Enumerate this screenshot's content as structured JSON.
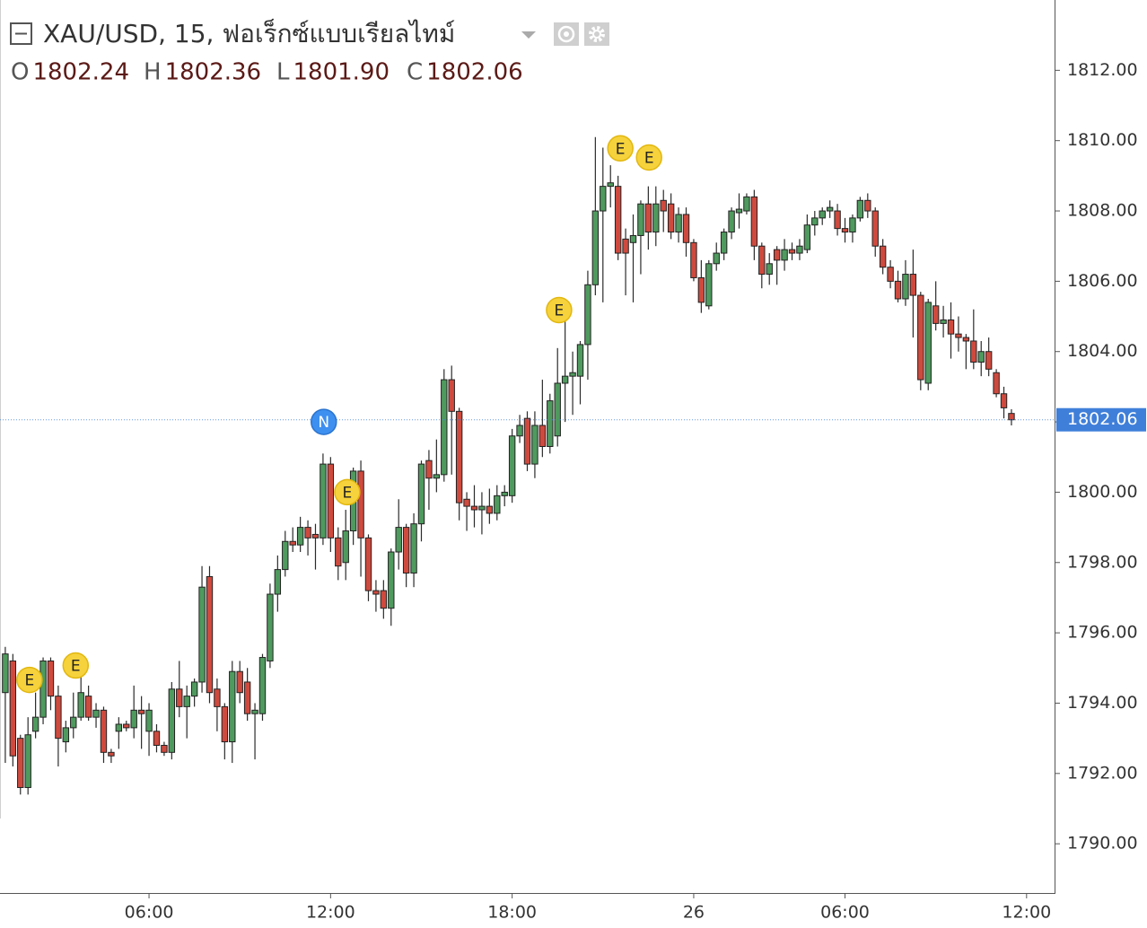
{
  "chart_data": {
    "type": "candlestick",
    "title": "XAU/USD, 15, ฟอเร็กซ์แบบเรียลไทม์",
    "ohlc_legend": [
      {
        "key": "O",
        "value": "1802.24"
      },
      {
        "key": "H",
        "value": "1802.36"
      },
      {
        "key": "L",
        "value": "1801.90"
      },
      {
        "key": "C",
        "value": "1802.06"
      }
    ],
    "up_color": "#4f9a5e",
    "down_color": "#cf4a3e",
    "open": [
      1794.3,
      1795.2,
      1793.0,
      1791.6,
      1793.2,
      1793.6,
      1795.2,
      1794.2,
      1792.9,
      1793.3,
      1793.6,
      1794.2,
      1793.6,
      1793.8,
      1792.6,
      1793.2,
      1793.4,
      1793.3,
      1793.8,
      1793.2,
      1793.2,
      1792.8,
      1792.6,
      1794.4,
      1793.9,
      1794.2,
      1794.6,
      1797.6,
      1794.4,
      1793.9,
      1792.9,
      1794.9,
      1794.6,
      1793.7,
      1793.7,
      1795.2,
      1797.1,
      1797.8,
      1798.6,
      1798.5,
      1799.0,
      1798.8,
      1798.7,
      1800.8,
      1798.7,
      1798.0,
      1798.9,
      1800.6,
      1798.7,
      1797.2,
      1797.2,
      1796.7,
      1798.3,
      1799.0,
      1797.7,
      1799.1,
      1800.9,
      1800.4,
      1800.5,
      1803.2,
      1802.3,
      1799.8,
      1799.6,
      1799.5,
      1799.6,
      1799.4,
      1799.9,
      1799.9,
      1801.6,
      1802.1,
      1800.8,
      1801.9,
      1801.3,
      1801.6,
      1803.1,
      1803.3,
      1803.3,
      1804.2,
      1805.9,
      1808.0,
      1808.7,
      1808.7,
      1807.2,
      1807.1,
      1807.3,
      1808.2,
      1807.4,
      1808.3,
      1808.2,
      1807.4,
      1807.9,
      1807.1,
      1806.1,
      1805.3,
      1806.5,
      1806.8,
      1807.4,
      1807.95,
      1808.0,
      1808.4,
      1807.0,
      1806.2,
      1806.9,
      1806.6,
      1806.9,
      1806.8,
      1806.9,
      1807.6,
      1807.8,
      1808.0,
      1808.0,
      1807.5,
      1807.4,
      1807.8,
      1808.3,
      1808.0,
      1807.0,
      1806.4,
      1806.0,
      1805.5,
      1806.2,
      1805.6,
      1803.1,
      1805.3,
      1804.8,
      1804.9,
      1804.5,
      1804.4,
      1804.3,
      1803.7,
      1804.0,
      1803.4,
      1802.8,
      1802.24
    ],
    "high": [
      1795.6,
      1795.4,
      1793.1,
      1793.6,
      1794.3,
      1795.3,
      1795.3,
      1794.5,
      1793.5,
      1794.3,
      1795.0,
      1794.5,
      1794.0,
      1793.9,
      1792.7,
      1793.6,
      1793.5,
      1794.5,
      1794.2,
      1794.0,
      1793.4,
      1792.9,
      1794.6,
      1795.2,
      1794.5,
      1794.7,
      1797.9,
      1797.9,
      1794.7,
      1794.0,
      1795.2,
      1795.2,
      1795.0,
      1794.0,
      1795.4,
      1797.4,
      1798.2,
      1798.9,
      1799.0,
      1799.3,
      1799.2,
      1799.1,
      1801.1,
      1801.0,
      1799.0,
      1799.5,
      1800.7,
      1800.9,
      1798.8,
      1797.5,
      1797.5,
      1798.4,
      1799.8,
      1799.1,
      1799.4,
      1800.9,
      1801.2,
      1801.5,
      1803.5,
      1803.6,
      1802.4,
      1800.0,
      1800.2,
      1800.0,
      1800.1,
      1800.2,
      1800.2,
      1801.8,
      1802.2,
      1802.3,
      1802.3,
      1803.2,
      1802.8,
      1804.1,
      1805.3,
      1804.0,
      1804.3,
      1806.3,
      1810.1,
      1809.8,
      1809.3,
      1809.0,
      1807.5,
      1807.9,
      1808.3,
      1808.7,
      1808.7,
      1808.6,
      1808.5,
      1808.1,
      1808.1,
      1807.2,
      1806.6,
      1806.6,
      1807.1,
      1807.5,
      1808.1,
      1808.5,
      1808.5,
      1808.6,
      1807.1,
      1806.8,
      1807.0,
      1807.2,
      1807.1,
      1807.2,
      1807.9,
      1808.0,
      1808.1,
      1808.3,
      1808.2,
      1807.8,
      1807.9,
      1808.4,
      1808.5,
      1808.1,
      1807.2,
      1806.6,
      1806.3,
      1806.6,
      1806.9,
      1805.7,
      1805.5,
      1806.0,
      1805.3,
      1805.4,
      1805.0,
      1804.5,
      1805.2,
      1804.3,
      1804.4,
      1803.5,
      1803.0,
      1802.36
    ],
    "low": [
      1792.3,
      1792.2,
      1791.4,
      1791.4,
      1793.0,
      1793.4,
      1793.8,
      1792.2,
      1792.6,
      1793.0,
      1793.5,
      1793.5,
      1793.3,
      1792.3,
      1792.3,
      1792.7,
      1793.2,
      1793.0,
      1792.7,
      1792.5,
      1792.6,
      1792.5,
      1792.4,
      1793.6,
      1793.0,
      1793.9,
      1794.3,
      1794.0,
      1793.2,
      1792.4,
      1792.3,
      1794.0,
      1793.5,
      1792.4,
      1793.5,
      1795.0,
      1796.6,
      1797.6,
      1798.3,
      1798.3,
      1798.2,
      1797.8,
      1798.5,
      1798.3,
      1797.5,
      1797.5,
      1798.5,
      1797.6,
      1796.9,
      1796.6,
      1796.4,
      1796.2,
      1797.8,
      1797.3,
      1797.3,
      1798.6,
      1799.5,
      1800.0,
      1800.3,
      1800.5,
      1799.2,
      1798.9,
      1799.0,
      1798.8,
      1799.1,
      1799.2,
      1799.6,
      1799.7,
      1801.4,
      1800.6,
      1800.4,
      1801.0,
      1801.1,
      1801.3,
      1802.0,
      1802.2,
      1802.5,
      1803.2,
      1805.6,
      1805.4,
      1808.1,
      1806.6,
      1805.6,
      1805.4,
      1806.2,
      1806.9,
      1807.0,
      1807.4,
      1807.2,
      1807.1,
      1806.7,
      1806.0,
      1805.1,
      1805.2,
      1806.3,
      1806.6,
      1807.2,
      1807.5,
      1807.9,
      1806.6,
      1805.8,
      1805.9,
      1805.9,
      1806.3,
      1806.6,
      1806.6,
      1806.8,
      1807.3,
      1807.6,
      1807.8,
      1807.3,
      1807.1,
      1807.1,
      1807.7,
      1807.8,
      1806.7,
      1806.2,
      1805.8,
      1805.4,
      1805.3,
      1804.4,
      1802.9,
      1802.9,
      1804.6,
      1804.4,
      1803.8,
      1804.0,
      1803.5,
      1803.5,
      1803.3,
      1803.3,
      1802.7,
      1802.1,
      1801.9
    ],
    "close": [
      1795.4,
      1792.5,
      1791.6,
      1793.1,
      1793.6,
      1795.2,
      1794.2,
      1793.0,
      1793.3,
      1793.6,
      1794.3,
      1793.6,
      1793.8,
      1792.6,
      1792.5,
      1793.4,
      1793.3,
      1793.8,
      1793.7,
      1793.8,
      1792.8,
      1792.6,
      1794.4,
      1793.9,
      1794.2,
      1794.6,
      1797.3,
      1794.3,
      1793.9,
      1792.9,
      1794.9,
      1794.3,
      1793.7,
      1793.8,
      1795.3,
      1797.1,
      1797.8,
      1798.6,
      1798.5,
      1799.0,
      1798.7,
      1798.7,
      1800.8,
      1798.7,
      1797.9,
      1798.9,
      1800.6,
      1798.7,
      1797.2,
      1797.1,
      1796.7,
      1798.3,
      1799.0,
      1797.7,
      1799.1,
      1800.8,
      1800.4,
      1800.5,
      1803.2,
      1802.3,
      1799.7,
      1799.6,
      1799.5,
      1799.6,
      1799.4,
      1799.9,
      1800.0,
      1801.6,
      1801.9,
      1800.8,
      1801.9,
      1801.3,
      1802.6,
      1803.1,
      1803.3,
      1803.4,
      1804.2,
      1805.9,
      1808.0,
      1808.7,
      1808.8,
      1806.8,
      1806.8,
      1807.3,
      1808.2,
      1807.4,
      1808.2,
      1808.0,
      1807.4,
      1807.9,
      1807.1,
      1806.1,
      1805.4,
      1806.5,
      1806.8,
      1807.4,
      1808.0,
      1808.05,
      1808.4,
      1807.0,
      1806.2,
      1806.5,
      1806.6,
      1806.9,
      1806.8,
      1807.0,
      1807.6,
      1807.8,
      1808.0,
      1808.1,
      1807.5,
      1807.4,
      1807.8,
      1808.3,
      1808.0,
      1807.0,
      1806.4,
      1806.0,
      1805.5,
      1806.2,
      1805.6,
      1803.2,
      1805.4,
      1804.8,
      1804.9,
      1804.5,
      1804.4,
      1804.3,
      1803.7,
      1804.0,
      1803.5,
      1802.8,
      1802.4,
      1802.06
    ],
    "xlim": [
      -0.7,
      138.7
    ],
    "xticks": [
      {
        "value": 19,
        "label": "06:00"
      },
      {
        "value": 43,
        "label": "12:00"
      },
      {
        "value": 67,
        "label": "18:00"
      },
      {
        "value": 91,
        "label": "26"
      },
      {
        "value": 111,
        "label": "06:00"
      },
      {
        "value": 135,
        "label": "12:00"
      }
    ],
    "ylim": [
      1788.6,
      1814.0
    ],
    "yticks": [
      {
        "value": 1790,
        "label": "1790.00"
      },
      {
        "value": 1792,
        "label": "1792.00"
      },
      {
        "value": 1794,
        "label": "1794.00"
      },
      {
        "value": 1796,
        "label": "1796.00"
      },
      {
        "value": 1798,
        "label": "1798.00"
      },
      {
        "value": 1800,
        "label": "1800.00"
      },
      {
        "value": 1802,
        "label": "1802.00"
      },
      {
        "value": 1804,
        "label": "1804.00"
      },
      {
        "value": 1806,
        "label": "1806.00"
      },
      {
        "value": 1808,
        "label": "1808.00"
      },
      {
        "value": 1810,
        "label": "1810.00"
      },
      {
        "value": 1812,
        "label": "1812.00"
      }
    ],
    "last_price": {
      "value": 1802.06,
      "label": "1802.06"
    },
    "last_price_color": "#3f7fd9",
    "markers": [
      {
        "label": "E",
        "x": 3.2,
        "y": 1794.66
      },
      {
        "label": "E",
        "x": 9.3,
        "y": 1795.07
      },
      {
        "label": "N",
        "x": 42.1,
        "y": 1802.0
      },
      {
        "label": "E",
        "x": 45.2,
        "y": 1800.0
      },
      {
        "label": "E",
        "x": 73.2,
        "y": 1805.18
      },
      {
        "label": "E",
        "x": 81.3,
        "y": 1809.78
      },
      {
        "label": "E",
        "x": 85.1,
        "y": 1809.52
      }
    ]
  }
}
